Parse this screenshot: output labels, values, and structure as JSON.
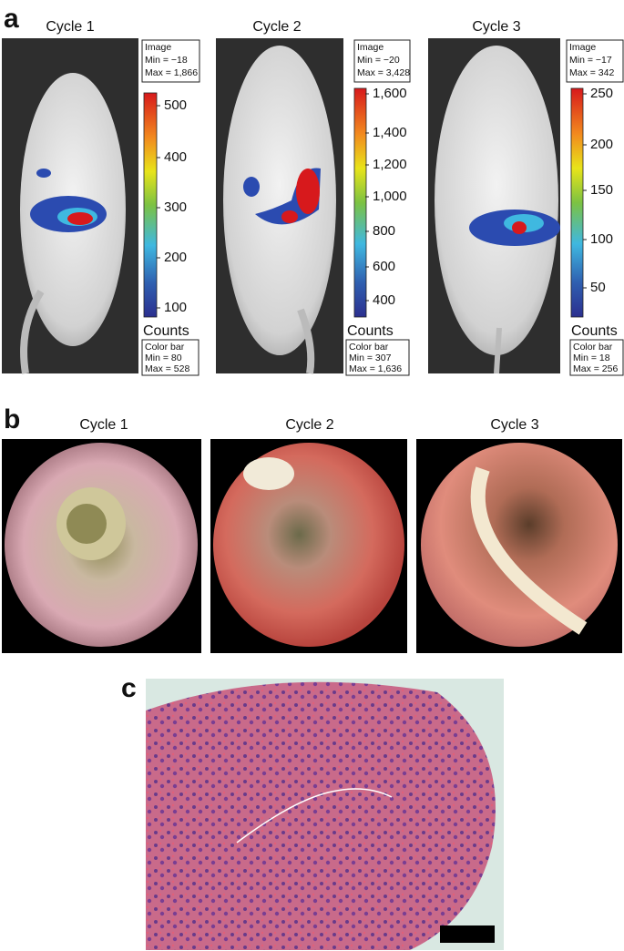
{
  "panel_a": {
    "label": "a",
    "cycles": [
      {
        "title": "Cycle 1",
        "image_box": [
          "Image",
          "Min = −18",
          "Max = 1,866"
        ],
        "ticks": [
          "500",
          "400",
          "300",
          "200",
          "100"
        ],
        "unit": "Counts",
        "bar_box": [
          "Color bar",
          "Min = 80",
          "Max = 528"
        ]
      },
      {
        "title": "Cycle 2",
        "image_box": [
          "Image",
          "Min = −20",
          "Max = 3,428"
        ],
        "ticks": [
          "1,600",
          "1,400",
          "1,200",
          "1,000",
          "800",
          "600",
          "400"
        ],
        "unit": "Counts",
        "bar_box": [
          "Color bar",
          "Min = 307",
          "Max = 1,636"
        ]
      },
      {
        "title": "Cycle 3",
        "image_box": [
          "Image",
          "Min = −17",
          "Max = 342"
        ],
        "ticks": [
          "250",
          "200",
          "150",
          "100",
          "50"
        ],
        "unit": "Counts",
        "bar_box": [
          "Color bar",
          "Min = 18",
          "Max = 256"
        ]
      }
    ]
  },
  "panel_b": {
    "label": "b",
    "titles": [
      "Cycle 1",
      "Cycle 2",
      "Cycle 3"
    ]
  },
  "panel_c": {
    "label": "c"
  }
}
